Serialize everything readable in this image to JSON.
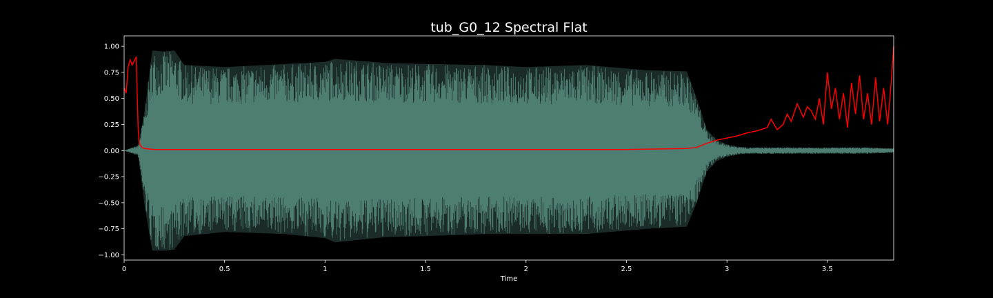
{
  "chart_data": {
    "type": "line",
    "title": "tub_G0_12 Spectral Flat",
    "xlabel": "Time",
    "ylabel": "",
    "xlim": [
      0,
      3.83
    ],
    "ylim": [
      -1.05,
      1.1
    ],
    "grid": false,
    "legend": "none",
    "xticks": [
      {
        "value": 0,
        "label": "0"
      },
      {
        "value": 0.5,
        "label": "0.5"
      },
      {
        "value": 1,
        "label": "1"
      },
      {
        "value": 1.5,
        "label": "1.5"
      },
      {
        "value": 2,
        "label": "2"
      },
      {
        "value": 2.5,
        "label": "2.5"
      },
      {
        "value": 3,
        "label": "3"
      },
      {
        "value": 3.5,
        "label": "3.5"
      }
    ],
    "yticks": [
      {
        "value": 1.0,
        "label": "1.00"
      },
      {
        "value": 0.75,
        "label": "0.75"
      },
      {
        "value": 0.5,
        "label": "0.50"
      },
      {
        "value": 0.25,
        "label": "0.25"
      },
      {
        "value": 0.0,
        "label": "0.00"
      },
      {
        "value": -0.25,
        "label": "−0.25"
      },
      {
        "value": -0.5,
        "label": "−0.50"
      },
      {
        "value": -0.75,
        "label": "−0.75"
      },
      {
        "value": -1.0,
        "label": "−1.00"
      }
    ],
    "colors": {
      "background": "#000000",
      "waveform": "#4e7d72",
      "spectral_flatness": "#ff0000",
      "axes": "#ffffff"
    },
    "waveform_envelope": {
      "x": [
        0.0,
        0.07,
        0.1,
        0.14,
        0.2,
        0.25,
        0.3,
        0.5,
        0.8,
        1.0,
        1.05,
        1.3,
        1.5,
        1.8,
        2.0,
        2.3,
        2.6,
        2.8,
        2.85,
        2.9,
        2.95,
        3.0,
        3.05,
        3.1,
        3.2,
        3.3,
        3.5,
        3.7,
        3.83
      ],
      "upper": [
        0.0,
        0.05,
        0.35,
        0.96,
        0.95,
        0.96,
        0.82,
        0.8,
        0.83,
        0.85,
        0.88,
        0.84,
        0.83,
        0.82,
        0.8,
        0.82,
        0.77,
        0.76,
        0.5,
        0.2,
        0.1,
        0.06,
        0.04,
        0.03,
        0.03,
        0.03,
        0.03,
        0.03,
        0.02
      ],
      "lower": [
        0.0,
        -0.05,
        -0.5,
        -0.96,
        -0.96,
        -0.95,
        -0.82,
        -0.78,
        -0.8,
        -0.84,
        -0.88,
        -0.83,
        -0.82,
        -0.8,
        -0.8,
        -0.8,
        -0.75,
        -0.73,
        -0.5,
        -0.2,
        -0.1,
        -0.06,
        -0.04,
        -0.03,
        -0.03,
        -0.03,
        -0.03,
        -0.03,
        -0.02
      ]
    },
    "series": [
      {
        "x": [
          0.0,
          0.01,
          0.02,
          0.03,
          0.04,
          0.05,
          0.06,
          0.065,
          0.07,
          0.075,
          0.08,
          0.09,
          0.1,
          0.15,
          0.3,
          0.6,
          1.0,
          1.5,
          2.0,
          2.5,
          2.8,
          2.85,
          2.9,
          2.95,
          3.0,
          3.05,
          3.1,
          3.15,
          3.2,
          3.22,
          3.25,
          3.28,
          3.3,
          3.32,
          3.35,
          3.38,
          3.4,
          3.42,
          3.44,
          3.46,
          3.48,
          3.5,
          3.52,
          3.54,
          3.56,
          3.58,
          3.6,
          3.62,
          3.64,
          3.66,
          3.68,
          3.7,
          3.72,
          3.74,
          3.76,
          3.78,
          3.8,
          3.82,
          3.83
        ],
        "values": [
          0.6,
          0.55,
          0.8,
          0.87,
          0.82,
          0.86,
          0.9,
          0.55,
          0.2,
          0.08,
          0.05,
          0.03,
          0.02,
          0.01,
          0.01,
          0.01,
          0.01,
          0.01,
          0.01,
          0.01,
          0.02,
          0.03,
          0.07,
          0.1,
          0.12,
          0.14,
          0.17,
          0.19,
          0.22,
          0.3,
          0.2,
          0.25,
          0.35,
          0.28,
          0.45,
          0.32,
          0.42,
          0.38,
          0.3,
          0.5,
          0.25,
          0.75,
          0.4,
          0.6,
          0.3,
          0.55,
          0.22,
          0.65,
          0.35,
          0.72,
          0.3,
          0.55,
          0.25,
          0.7,
          0.28,
          0.6,
          0.25,
          0.72,
          1.0
        ]
      }
    ]
  }
}
